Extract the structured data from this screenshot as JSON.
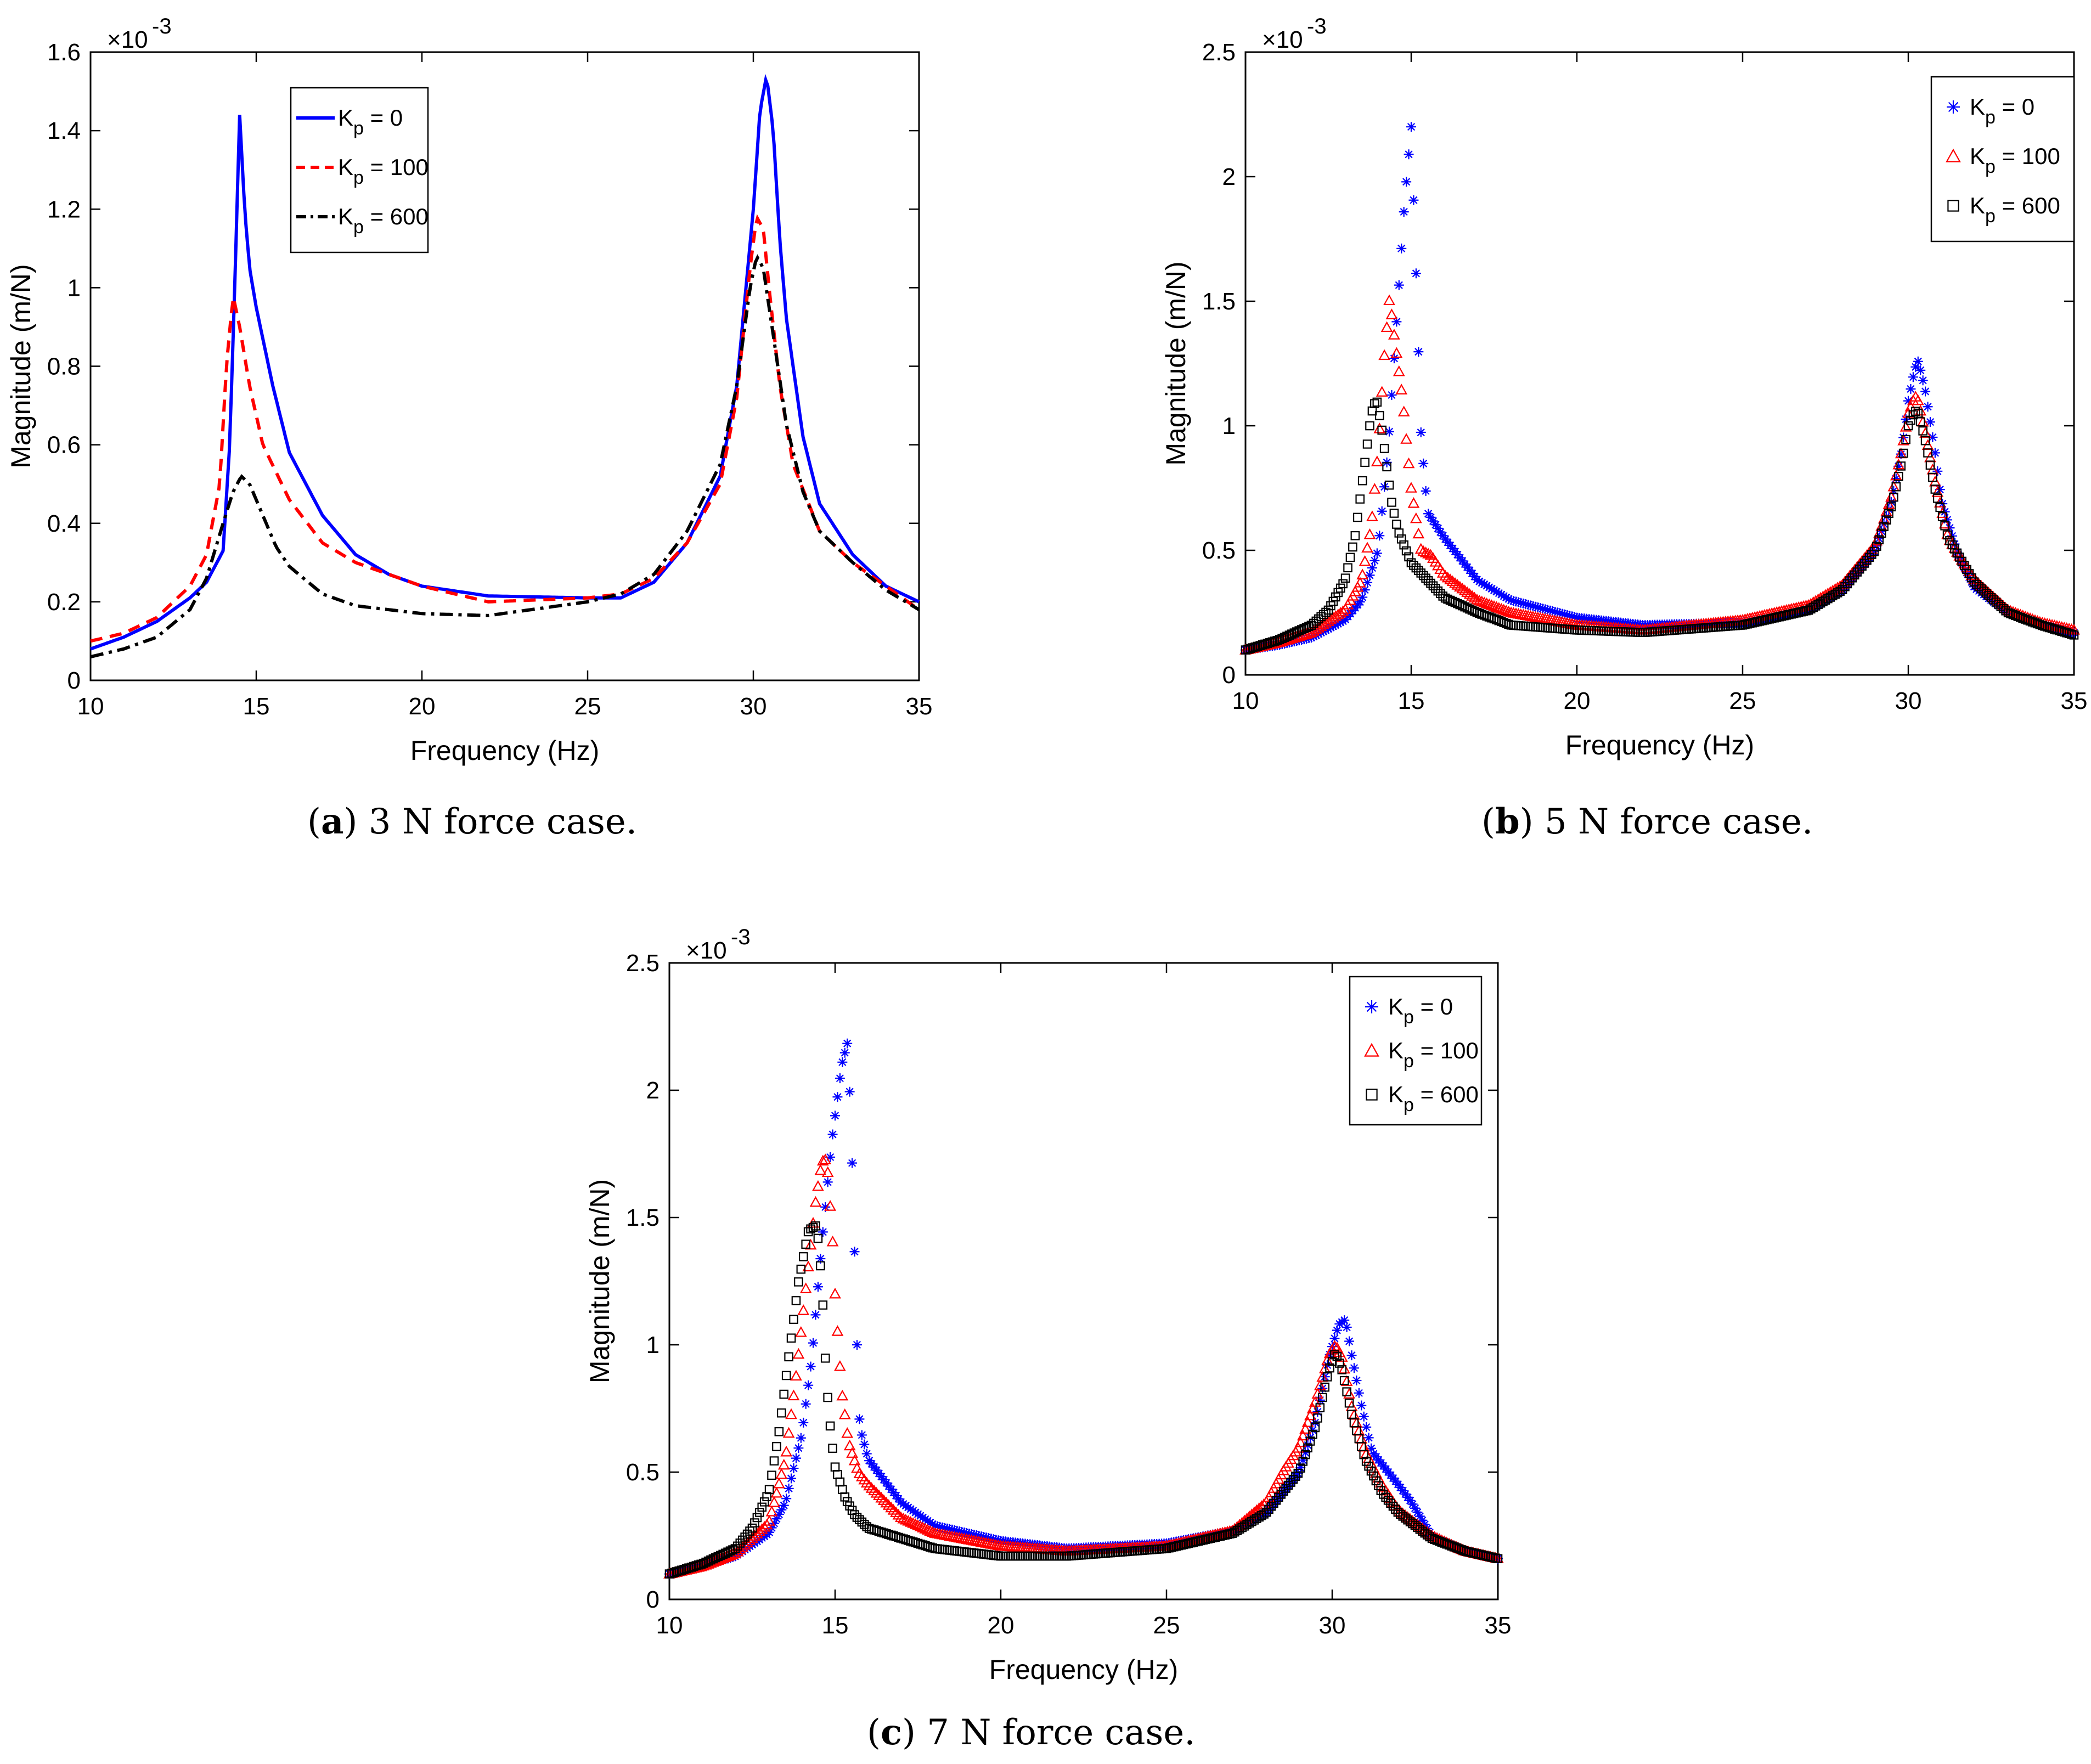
{
  "chart_data": [
    {
      "id": "a",
      "type": "line",
      "caption_letter": "a",
      "caption_text": " 3 N force case.",
      "xlabel": "Frequency (Hz)",
      "ylabel": "Magnitude (m/N)",
      "y_multiplier": "×10",
      "y_exponent": "-3",
      "xlim": [
        10,
        35
      ],
      "ylim": [
        0,
        1.6
      ],
      "xticks": [
        10,
        15,
        20,
        25,
        30,
        35
      ],
      "yticks": [
        0,
        0.2,
        0.4,
        0.6,
        0.8,
        1,
        1.2,
        1.4,
        1.6
      ],
      "ytick_labels": [
        "0",
        "0.2",
        "0.4",
        "0.6",
        "0.8",
        "1",
        "1.2",
        "1.4",
        "1.6"
      ],
      "legend_position": "top-left-center",
      "series": [
        {
          "name": "K_p = 0",
          "label_main": "K",
          "label_sub": "p",
          "label_rest": " = 0",
          "color": "#0000ff",
          "style": "solid",
          "x": [
            10,
            11,
            12,
            13,
            13.5,
            14,
            14.2,
            14.35,
            14.5,
            14.65,
            14.8,
            15,
            15.5,
            16,
            17,
            18,
            19,
            20,
            22,
            25,
            26,
            27,
            28,
            29,
            29.5,
            30,
            30.2,
            30.4,
            30.6,
            30.8,
            31,
            31.5,
            32,
            33,
            34,
            35
          ],
          "y": [
            0.08,
            0.11,
            0.15,
            0.21,
            0.25,
            0.33,
            0.6,
            1.0,
            1.44,
            1.2,
            1.05,
            0.95,
            0.75,
            0.58,
            0.42,
            0.32,
            0.27,
            0.24,
            0.215,
            0.21,
            0.21,
            0.25,
            0.35,
            0.52,
            0.75,
            1.2,
            1.45,
            1.54,
            1.4,
            1.12,
            0.92,
            0.62,
            0.45,
            0.32,
            0.24,
            0.2
          ]
        },
        {
          "name": "K_p = 100",
          "label_main": "K",
          "label_sub": "p",
          "label_rest": " = 100",
          "color": "#ff0000",
          "style": "dashed",
          "x": [
            10,
            11,
            12,
            13,
            13.5,
            13.9,
            14.1,
            14.3,
            14.5,
            14.8,
            15.2,
            16,
            17,
            18,
            20,
            22,
            25,
            26,
            27,
            28,
            29,
            29.5,
            29.9,
            30.1,
            30.3,
            30.5,
            30.8,
            31.2,
            32,
            33,
            34,
            35
          ],
          "y": [
            0.1,
            0.12,
            0.16,
            0.24,
            0.32,
            0.5,
            0.8,
            0.98,
            0.9,
            0.75,
            0.6,
            0.46,
            0.35,
            0.3,
            0.24,
            0.2,
            0.21,
            0.22,
            0.26,
            0.35,
            0.5,
            0.72,
            1.05,
            1.18,
            1.15,
            0.98,
            0.75,
            0.55,
            0.38,
            0.3,
            0.24,
            0.18
          ]
        },
        {
          "name": "K_p = 600",
          "label_main": "K",
          "label_sub": "p",
          "label_rest": " = 600",
          "color": "#000000",
          "style": "dashdot",
          "x": [
            10,
            11,
            12,
            13,
            13.5,
            14,
            14.3,
            14.55,
            14.8,
            15.2,
            15.6,
            16,
            17,
            18,
            20,
            22,
            25,
            26,
            27,
            28,
            29,
            29.5,
            29.9,
            30.1,
            30.3,
            30.6,
            31,
            31.5,
            32,
            33,
            34,
            35
          ],
          "y": [
            0.06,
            0.08,
            0.11,
            0.18,
            0.26,
            0.4,
            0.48,
            0.52,
            0.5,
            0.42,
            0.34,
            0.29,
            0.22,
            0.19,
            0.17,
            0.165,
            0.2,
            0.22,
            0.27,
            0.38,
            0.55,
            0.75,
            1.0,
            1.08,
            1.05,
            0.88,
            0.65,
            0.48,
            0.38,
            0.3,
            0.23,
            0.18
          ]
        }
      ]
    },
    {
      "id": "b",
      "type": "scatter",
      "caption_letter": "b",
      "caption_text": " 5 N force case.",
      "xlabel": "Frequency (Hz)",
      "ylabel": "Magnitude (m/N)",
      "y_multiplier": "×10",
      "y_exponent": "-3",
      "xlim": [
        10,
        35
      ],
      "ylim": [
        0,
        2.5
      ],
      "xticks": [
        10,
        15,
        20,
        25,
        30,
        35
      ],
      "yticks": [
        0,
        0.5,
        1,
        1.5,
        2,
        2.5
      ],
      "ytick_labels": [
        "0",
        "0.5",
        "1",
        "1.5",
        "2",
        "2.5"
      ],
      "legend_position": "top-right",
      "series": [
        {
          "name": "K_p = 0",
          "label_main": "K",
          "label_sub": "p",
          "label_rest": " = 0",
          "color": "#0000ff",
          "marker": "star",
          "x": [
            10,
            11,
            12,
            13,
            13.5,
            14,
            14.3,
            14.6,
            14.8,
            15,
            15.05,
            15.1,
            15.15,
            15.2,
            15.25,
            15.3,
            15.5,
            16,
            17,
            18,
            20,
            22,
            25,
            27,
            28,
            29,
            29.5,
            29.8,
            30,
            30.2,
            30.3,
            30.5,
            30.8,
            31,
            31.5,
            32,
            33,
            34,
            35
          ],
          "y": [
            0.1,
            0.12,
            0.15,
            0.22,
            0.3,
            0.5,
            0.9,
            1.5,
            1.9,
            2.2,
            2.0,
            1.8,
            1.6,
            1.4,
            1.15,
            0.95,
            0.65,
            0.55,
            0.38,
            0.3,
            0.23,
            0.2,
            0.21,
            0.26,
            0.34,
            0.5,
            0.7,
            0.9,
            1.1,
            1.23,
            1.26,
            1.15,
            0.9,
            0.7,
            0.48,
            0.35,
            0.25,
            0.2,
            0.17
          ]
        },
        {
          "name": "K_p = 100",
          "label_main": "K",
          "label_sub": "p",
          "label_rest": " = 100",
          "color": "#ff0000",
          "marker": "triangle",
          "x": [
            10,
            11,
            12,
            13,
            13.5,
            13.8,
            14,
            14.2,
            14.35,
            14.45,
            14.55,
            14.65,
            14.75,
            14.85,
            15,
            15.3,
            15.6,
            16,
            17,
            18,
            20,
            22,
            25,
            27,
            28,
            29,
            29.5,
            29.8,
            30,
            30.2,
            30.3,
            30.5,
            30.8,
            31.2,
            32,
            33,
            34,
            35
          ],
          "y": [
            0.1,
            0.13,
            0.17,
            0.26,
            0.38,
            0.6,
            0.9,
            1.3,
            1.52,
            1.4,
            1.3,
            1.2,
            1.1,
            0.95,
            0.75,
            0.5,
            0.48,
            0.4,
            0.3,
            0.25,
            0.2,
            0.18,
            0.22,
            0.28,
            0.36,
            0.52,
            0.72,
            0.9,
            1.05,
            1.12,
            1.1,
            0.98,
            0.78,
            0.55,
            0.38,
            0.26,
            0.21,
            0.18
          ]
        },
        {
          "name": "K_p = 600",
          "label_main": "K",
          "label_sub": "p",
          "label_rest": " = 600",
          "color": "#000000",
          "marker": "square",
          "x": [
            10,
            11,
            12,
            12.5,
            13,
            13.3,
            13.6,
            13.8,
            13.95,
            14.1,
            14.25,
            14.4,
            14.6,
            15,
            15.5,
            16,
            17,
            18,
            20,
            22,
            25,
            27,
            28,
            29,
            29.5,
            29.8,
            30,
            30.2,
            30.3,
            30.5,
            30.8,
            31.2,
            32,
            33,
            34,
            35
          ],
          "y": [
            0.1,
            0.14,
            0.2,
            0.26,
            0.38,
            0.55,
            0.85,
            1.05,
            1.11,
            1.0,
            0.85,
            0.7,
            0.58,
            0.45,
            0.38,
            0.31,
            0.25,
            0.2,
            0.18,
            0.17,
            0.2,
            0.26,
            0.34,
            0.5,
            0.68,
            0.85,
            1.0,
            1.06,
            1.05,
            0.95,
            0.75,
            0.55,
            0.37,
            0.25,
            0.2,
            0.16
          ]
        }
      ]
    },
    {
      "id": "c",
      "type": "scatter",
      "caption_letter": "c",
      "caption_text": " 7 N force case.",
      "xlabel": "Frequency (Hz)",
      "ylabel": "Magnitude (m/N)",
      "y_multiplier": "×10",
      "y_exponent": "-3",
      "xlim": [
        10,
        35
      ],
      "ylim": [
        0,
        2.5
      ],
      "xticks": [
        10,
        15,
        20,
        25,
        30,
        35
      ],
      "yticks": [
        0,
        0.5,
        1,
        1.5,
        2,
        2.5
      ],
      "ytick_labels": [
        "0",
        "0.5",
        "1",
        "1.5",
        "2",
        "2.5"
      ],
      "legend_position": "top-right",
      "series": [
        {
          "name": "K_p = 0",
          "label_main": "K",
          "label_sub": "p",
          "label_rest": " = 0",
          "color": "#0000ff",
          "marker": "star",
          "x": [
            10,
            11,
            12,
            13,
            13.5,
            14,
            14.3,
            14.6,
            14.9,
            15.2,
            15.4,
            15.45,
            15.5,
            15.55,
            15.6,
            15.65,
            15.7,
            15.8,
            16,
            17,
            18,
            20,
            22,
            25,
            27,
            28,
            29,
            29.5,
            29.9,
            30.2,
            30.4,
            30.6,
            30.9,
            31.2,
            32,
            32.4,
            33,
            34,
            35
          ],
          "y": [
            0.1,
            0.13,
            0.17,
            0.26,
            0.38,
            0.65,
            0.95,
            1.4,
            1.8,
            2.1,
            2.2,
            1.95,
            1.77,
            1.58,
            1.3,
            1.08,
            0.74,
            0.65,
            0.55,
            0.38,
            0.29,
            0.23,
            0.2,
            0.22,
            0.27,
            0.34,
            0.5,
            0.7,
            0.95,
            1.08,
            1.1,
            0.95,
            0.75,
            0.58,
            0.45,
            0.38,
            0.25,
            0.19,
            0.16
          ]
        },
        {
          "name": "K_p = 100",
          "label_main": "K",
          "label_sub": "p",
          "label_rest": " = 100",
          "color": "#ff0000",
          "marker": "triangle",
          "x": [
            10,
            11,
            12,
            13,
            13.5,
            13.8,
            14.1,
            14.4,
            14.6,
            14.75,
            14.85,
            14.95,
            15,
            15.1,
            15.2,
            15.4,
            15.7,
            16,
            17,
            18,
            20,
            22,
            25,
            27,
            28,
            28.5,
            29,
            29.5,
            29.9,
            30.1,
            30.3,
            30.6,
            31,
            31.5,
            32,
            33,
            34,
            35
          ],
          "y": [
            0.1,
            0.13,
            0.18,
            0.3,
            0.55,
            0.85,
            1.2,
            1.55,
            1.72,
            1.73,
            1.55,
            1.36,
            1.2,
            1.0,
            0.82,
            0.62,
            0.5,
            0.45,
            0.32,
            0.26,
            0.21,
            0.19,
            0.21,
            0.27,
            0.38,
            0.5,
            0.6,
            0.78,
            0.96,
            1.0,
            0.95,
            0.75,
            0.58,
            0.45,
            0.35,
            0.25,
            0.19,
            0.16
          ]
        },
        {
          "name": "K_p = 600",
          "label_main": "K",
          "label_sub": "p",
          "label_rest": " = 600",
          "color": "#000000",
          "marker": "square",
          "x": [
            10,
            11,
            12,
            12.5,
            13,
            13.3,
            13.6,
            13.9,
            14.2,
            14.45,
            14.6,
            14.7,
            14.8,
            14.9,
            15,
            15.3,
            15.6,
            16,
            17,
            18,
            20,
            22,
            25,
            27,
            28,
            29,
            29.5,
            29.9,
            30.1,
            30.3,
            30.6,
            31,
            31.5,
            32,
            33,
            34,
            35
          ],
          "y": [
            0.1,
            0.14,
            0.2,
            0.28,
            0.42,
            0.65,
            0.95,
            1.25,
            1.45,
            1.47,
            1.25,
            0.96,
            0.75,
            0.62,
            0.52,
            0.4,
            0.33,
            0.28,
            0.24,
            0.2,
            0.17,
            0.17,
            0.2,
            0.26,
            0.34,
            0.5,
            0.68,
            0.9,
            0.97,
            0.9,
            0.72,
            0.55,
            0.42,
            0.34,
            0.24,
            0.19,
            0.16
          ]
        }
      ]
    }
  ]
}
